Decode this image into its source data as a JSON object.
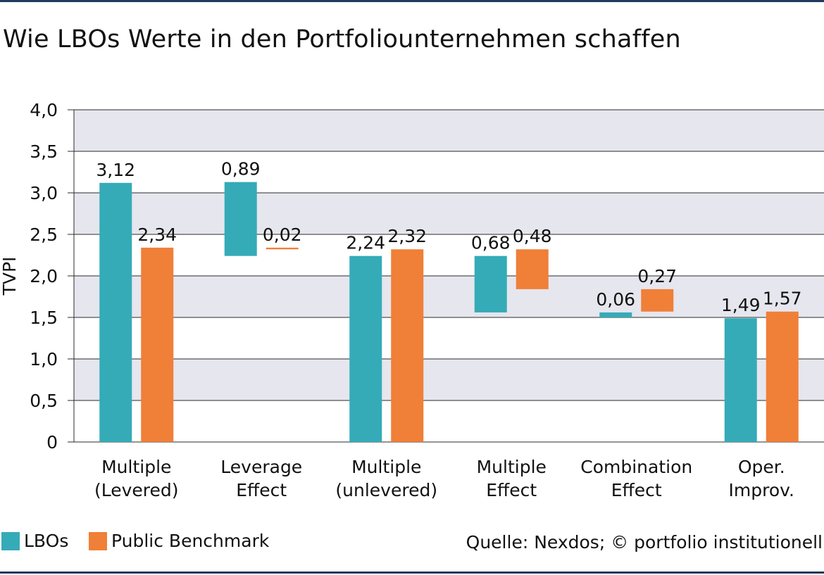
{
  "title": "Wie LBOs Werte in den Portfoliounternehmen schaffen",
  "source": "Quelle: Nexdos; © portfolio institutionell",
  "colors": {
    "lbo": "#35abb8",
    "benchmark": "#f07f38",
    "band": "#e6e6ee",
    "grid": "#2b2b2b"
  },
  "legend": [
    {
      "label": "LBOs",
      "color": "#35abb8"
    },
    {
      "label": "Public Benchmark",
      "color": "#f07f38"
    }
  ],
  "chart_data": {
    "type": "bar",
    "subtype": "floating waterfall",
    "ylabel": "TVPI",
    "xlabel": "",
    "ylim": [
      0,
      4.0
    ],
    "yticks": [
      {
        "value": 0,
        "label": "0"
      },
      {
        "value": 0.5,
        "label": "0,5"
      },
      {
        "value": 1.0,
        "label": "1,0"
      },
      {
        "value": 1.5,
        "label": "1,5"
      },
      {
        "value": 2.0,
        "label": "2,0"
      },
      {
        "value": 2.5,
        "label": "2,5"
      },
      {
        "value": 3.0,
        "label": "3,0"
      },
      {
        "value": 3.5,
        "label": "3,5"
      },
      {
        "value": 4.0,
        "label": "4,0"
      }
    ],
    "grid": true,
    "legend_position": "bottom-left",
    "categories": [
      [
        "Multiple",
        "(Levered)"
      ],
      [
        "Leverage",
        "Effect"
      ],
      [
        "Multiple",
        "(unlevered)"
      ],
      [
        "Multiple",
        "Effect"
      ],
      [
        "Combination",
        "Effect"
      ],
      [
        "Oper.",
        "Improv."
      ]
    ],
    "series": [
      {
        "name": "LBOs",
        "color": "#35abb8",
        "values": [
          3.12,
          0.89,
          2.24,
          0.68,
          0.06,
          1.49
        ],
        "labels": [
          "3,12",
          "0,89",
          "2,24",
          "0,68",
          "0,06",
          "1,49"
        ],
        "bases": [
          0,
          2.24,
          0,
          1.56,
          1.5,
          0
        ]
      },
      {
        "name": "Public Benchmark",
        "color": "#f07f38",
        "values": [
          2.34,
          0.02,
          2.32,
          0.48,
          0.27,
          1.57
        ],
        "labels": [
          "2,34",
          "0,02",
          "2,32",
          "0,48",
          "0,27",
          "1,57"
        ],
        "bases": [
          0,
          2.32,
          0,
          1.84,
          1.57,
          0
        ]
      }
    ]
  }
}
